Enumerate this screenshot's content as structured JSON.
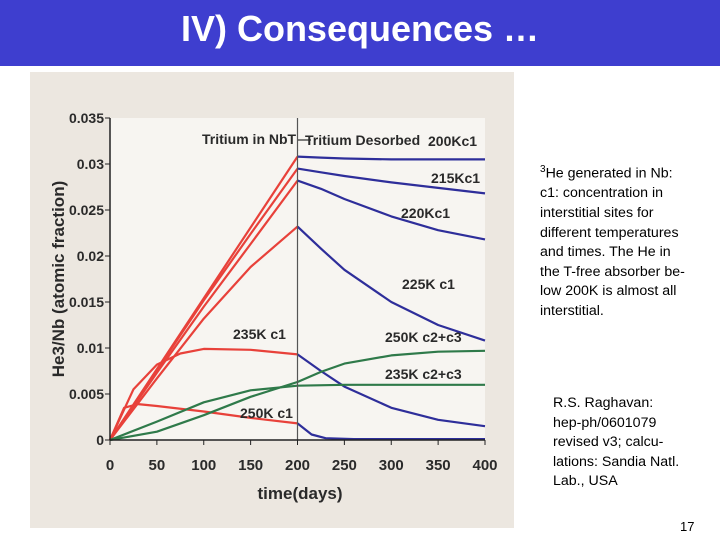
{
  "slide": {
    "title": "IV) Consequences …",
    "page_number": "17"
  },
  "description": {
    "superscript": "3",
    "line1": "He generated in Nb:",
    "line2": "c1: concentration in",
    "line3": "interstitial sites for",
    "line4": "different temperatures",
    "line5": "and times. The He in",
    "line6": "the T-free absorber be-",
    "line7": "low 200K is almost all",
    "line8": "interstitial."
  },
  "reference": {
    "line1": "R.S. Raghavan:",
    "line2": "hep-ph/0601079",
    "line3": "revised v3; calcu-",
    "line4": "lations: Sandia Natl.",
    "line5": "Lab., USA"
  },
  "colors": {
    "red": "#e8413a",
    "blue": "#2e2e9a",
    "green": "#2f7a4a",
    "divider": "#555555"
  },
  "chart_data": {
    "type": "line",
    "xlabel": "time(days)",
    "ylabel": "He3/Nb (atomic fraction)",
    "xlim": [
      0,
      400
    ],
    "ylim": [
      0,
      0.035
    ],
    "x_ticks": [
      "0",
      "50",
      "100",
      "150",
      "200",
      "250",
      "300",
      "350",
      "400"
    ],
    "y_ticks": [
      "0",
      "0.005",
      "0.01",
      "0.015",
      "0.02",
      "0.025",
      "0.03",
      "0.035"
    ],
    "annotations": {
      "tritium_in": "Tritium in NbT",
      "tritium_desorbed": "Tritium Desorbed",
      "s200": "200Kc1",
      "s215": "215Kc1",
      "s220": "220Kc1",
      "s225": "225K c1",
      "s235c1": "235K c1",
      "s250c1": "250K c1",
      "s250c23": "250K c2+c3",
      "s235c23": "235K c2+c3"
    },
    "series": [
      {
        "name": "200Kc1",
        "color": "red",
        "x": [
          0,
          200
        ],
        "y": [
          0,
          0.0308
        ]
      },
      {
        "name": "200Kc1",
        "color": "blue",
        "x": [
          200,
          225,
          250,
          300,
          350,
          400
        ],
        "y": [
          0.0308,
          0.0307,
          0.0306,
          0.0305,
          0.0305,
          0.0305
        ]
      },
      {
        "name": "215Kc1",
        "color": "red",
        "x": [
          0,
          50,
          100,
          150,
          200
        ],
        "y": [
          0,
          0.0076,
          0.0152,
          0.0224,
          0.0295
        ]
      },
      {
        "name": "215Kc1",
        "color": "blue",
        "x": [
          200,
          225,
          250,
          300,
          350,
          400
        ],
        "y": [
          0.0295,
          0.0291,
          0.0287,
          0.028,
          0.0274,
          0.0268
        ]
      },
      {
        "name": "220Kc1",
        "color": "red",
        "x": [
          0,
          50,
          100,
          150,
          200
        ],
        "y": [
          0,
          0.0073,
          0.0145,
          0.0213,
          0.0282
        ]
      },
      {
        "name": "220Kc1",
        "color": "blue",
        "x": [
          200,
          225,
          250,
          300,
          350,
          400
        ],
        "y": [
          0.0282,
          0.0273,
          0.0262,
          0.0243,
          0.0228,
          0.0218
        ]
      },
      {
        "name": "225K c1",
        "color": "red",
        "x": [
          0,
          50,
          100,
          150,
          200
        ],
        "y": [
          0,
          0.0067,
          0.0132,
          0.0188,
          0.0232
        ]
      },
      {
        "name": "225K c1",
        "color": "blue",
        "x": [
          200,
          225,
          250,
          300,
          350,
          400
        ],
        "y": [
          0.0232,
          0.0208,
          0.0185,
          0.015,
          0.0125,
          0.0108
        ]
      },
      {
        "name": "235K c1",
        "color": "red",
        "x": [
          0,
          25,
          50,
          75,
          100,
          150,
          200
        ],
        "y": [
          0,
          0.0055,
          0.0082,
          0.0094,
          0.0099,
          0.0098,
          0.0093
        ]
      },
      {
        "name": "235K c1",
        "color": "blue",
        "x": [
          200,
          225,
          250,
          300,
          350,
          400
        ],
        "y": [
          0.0093,
          0.0075,
          0.0058,
          0.0035,
          0.0022,
          0.0015
        ]
      },
      {
        "name": "250K c1",
        "color": "red",
        "x": [
          0,
          15,
          30,
          50,
          100,
          150,
          200
        ],
        "y": [
          0,
          0.0035,
          0.0039,
          0.0037,
          0.0031,
          0.0024,
          0.0018
        ]
      },
      {
        "name": "250K c1",
        "color": "blue",
        "x": [
          200,
          215,
          230,
          260,
          300,
          400
        ],
        "y": [
          0.0018,
          0.0006,
          0.0002,
          0.0001,
          0.0001,
          0.0001
        ]
      },
      {
        "name": "250K c2+c3",
        "color": "green",
        "x": [
          0,
          50,
          100,
          150,
          200,
          225,
          250,
          300,
          350,
          400
        ],
        "y": [
          0,
          0.0009,
          0.0027,
          0.0047,
          0.0063,
          0.0074,
          0.0083,
          0.0092,
          0.0096,
          0.0097
        ]
      },
      {
        "name": "235K c2+c3",
        "color": "green",
        "x": [
          0,
          50,
          100,
          150,
          200,
          250,
          300,
          350,
          400
        ],
        "y": [
          0,
          0.002,
          0.0041,
          0.0054,
          0.0059,
          0.006,
          0.006,
          0.006,
          0.006
        ]
      }
    ]
  }
}
